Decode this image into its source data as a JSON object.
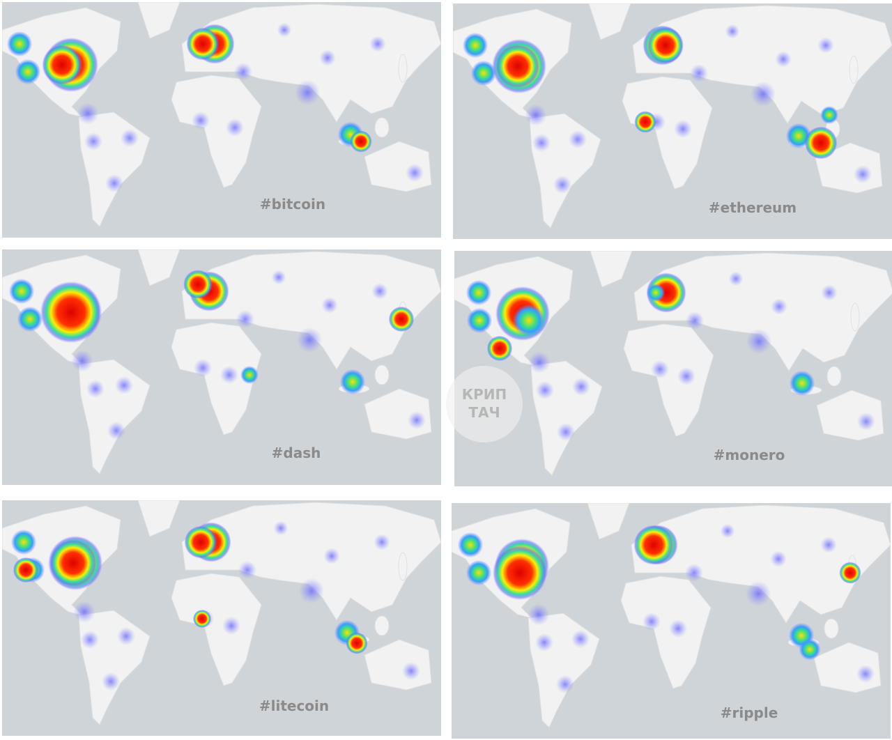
{
  "panels": [
    {
      "label": "#bitcoin"
    },
    {
      "label": "#ethereum"
    },
    {
      "label": "#dash"
    },
    {
      "label": "#monero"
    },
    {
      "label": "#litecoin"
    },
    {
      "label": "#ripple"
    }
  ],
  "watermark": {
    "line1": "КРИП",
    "line2": "ТАЧ"
  }
}
